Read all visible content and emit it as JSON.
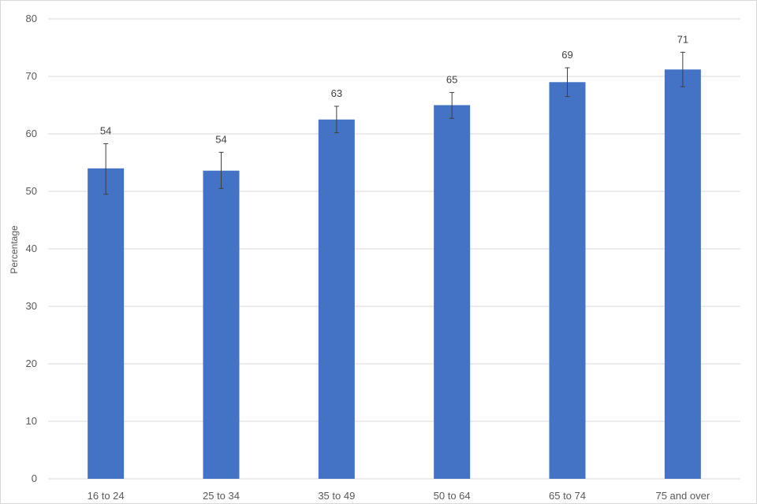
{
  "chart_data": {
    "type": "bar",
    "categories": [
      "16 to 24",
      "25 to 34",
      "35 to 49",
      "50 to 64",
      "65 to 74",
      "75 and over"
    ],
    "values": [
      54,
      53.6,
      62.5,
      65,
      69,
      71.2
    ],
    "data_labels": [
      "54",
      "54",
      "63",
      "65",
      "69",
      "71"
    ],
    "error_low": [
      49.5,
      50.5,
      60.2,
      62.7,
      66.5,
      68.2
    ],
    "error_high": [
      58.3,
      56.8,
      64.8,
      67.2,
      71.5,
      74.2
    ],
    "title": "",
    "xlabel": "",
    "ylabel": "Percentage",
    "ylim": [
      0,
      80
    ],
    "yticks": [
      0,
      10,
      20,
      30,
      40,
      50,
      60,
      70,
      80
    ],
    "grid": true,
    "bar_color": "#4472c4",
    "legend": "none"
  }
}
